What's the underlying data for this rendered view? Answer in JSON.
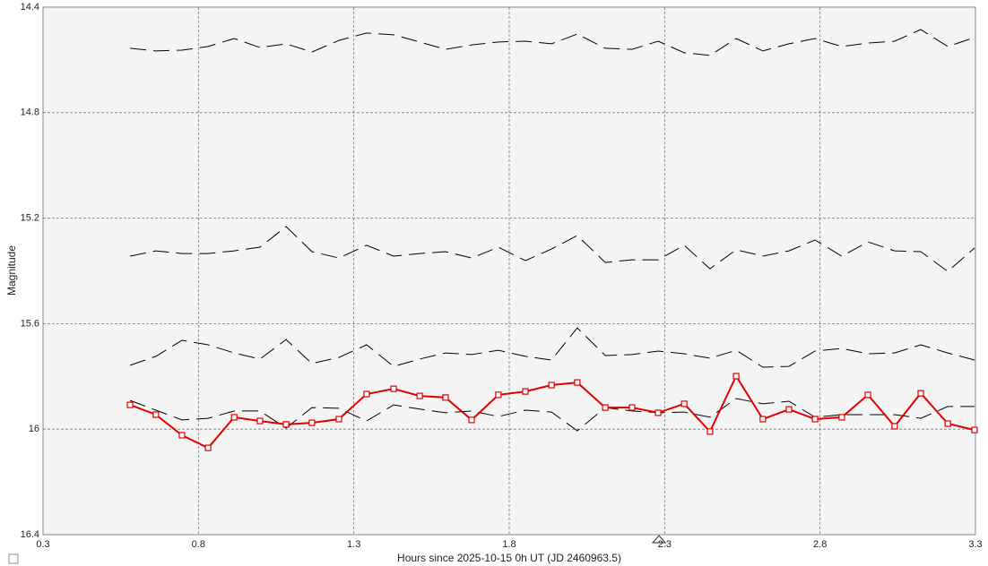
{
  "chart_data": {
    "type": "line",
    "x_label": "Hours since 2025-10-15 0h UT (JD 2460963.5)",
    "y_label": "Magnitude",
    "xlim": [
      0.3,
      3.3
    ],
    "xticks": [
      0.3,
      0.8,
      1.3,
      1.8,
      2.3,
      2.8,
      3.3
    ],
    "ylim": [
      14.4,
      16.4
    ],
    "yticks": [
      14.4,
      14.8,
      15.2,
      15.6,
      16,
      16.4
    ],
    "invert_y": true,
    "grid": true,
    "x": [
      0.58,
      0.663,
      0.747,
      0.831,
      0.915,
      0.998,
      1.082,
      1.165,
      1.252,
      1.341,
      1.428,
      1.512,
      1.595,
      1.679,
      1.765,
      1.852,
      1.936,
      2.019,
      2.109,
      2.195,
      2.279,
      2.363,
      2.446,
      2.53,
      2.616,
      2.7,
      2.784,
      2.87,
      2.954,
      3.04,
      3.124,
      3.211,
      3.297
    ],
    "series": [
      {
        "color": "#000000",
        "style": "dashed",
        "values": [
          14.556,
          14.566,
          14.563,
          14.549,
          14.519,
          14.553,
          14.539,
          14.57,
          14.526,
          14.498,
          14.505,
          14.532,
          14.56,
          14.543,
          14.532,
          14.529,
          14.539,
          14.502,
          14.556,
          14.56,
          14.529,
          14.573,
          14.583,
          14.519,
          14.566,
          14.539,
          14.519,
          14.549,
          14.536,
          14.529,
          14.485,
          14.549,
          14.515
        ]
      },
      {
        "color": "#000000",
        "style": "dashed",
        "values": [
          15.344,
          15.324,
          15.334,
          15.334,
          15.324,
          15.31,
          15.232,
          15.327,
          15.351,
          15.303,
          15.344,
          15.334,
          15.327,
          15.351,
          15.31,
          15.361,
          15.317,
          15.266,
          15.368,
          15.358,
          15.358,
          15.303,
          15.392,
          15.32,
          15.344,
          15.324,
          15.283,
          15.344,
          15.29,
          15.324,
          15.327,
          15.402,
          15.313
        ]
      },
      {
        "color": "#000000",
        "style": "dashed",
        "values": [
          15.758,
          15.724,
          15.663,
          15.68,
          15.711,
          15.734,
          15.66,
          15.751,
          15.728,
          15.68,
          15.762,
          15.734,
          15.711,
          15.717,
          15.701,
          15.724,
          15.738,
          15.616,
          15.721,
          15.717,
          15.704,
          15.714,
          15.731,
          15.701,
          15.765,
          15.762,
          15.704,
          15.694,
          15.714,
          15.711,
          15.68,
          15.711,
          15.738
        ]
      },
      {
        "color": "#000000",
        "style": "dashed",
        "values": [
          15.891,
          15.928,
          15.965,
          15.959,
          15.931,
          15.931,
          15.996,
          15.918,
          15.921,
          15.969,
          15.908,
          15.924,
          15.938,
          15.931,
          15.952,
          15.928,
          15.935,
          16.006,
          15.918,
          15.931,
          15.938,
          15.935,
          15.955,
          15.884,
          15.904,
          15.894,
          15.955,
          15.945,
          15.945,
          15.945,
          15.959,
          15.914,
          15.914
        ]
      },
      {
        "color": "#e00000",
        "style": "solid",
        "marker": "square",
        "values": [
          15.908,
          15.945,
          16.023,
          16.071,
          15.955,
          15.969,
          15.982,
          15.976,
          15.962,
          15.867,
          15.847,
          15.874,
          15.88,
          15.965,
          15.87,
          15.857,
          15.833,
          15.823,
          15.918,
          15.918,
          15.938,
          15.904,
          16.009,
          15.799,
          15.962,
          15.925,
          15.962,
          15.955,
          15.87,
          15.989,
          15.864,
          15.979,
          16.003
        ]
      }
    ]
  }
}
